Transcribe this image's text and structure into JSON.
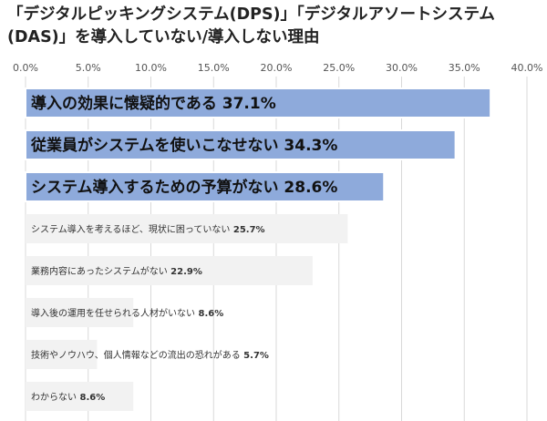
{
  "chart_data": {
    "type": "bar",
    "orientation": "horizontal",
    "title": "「デジタルピッキングシステム(DPS)」「デジタルアソートシステム(DAS)」を導入していない/導入しない理由",
    "categories": [
      "導入の効果に懐疑的である",
      "従業員がシステムを使いこなせない",
      "システム導入するための予算がない",
      "システム導入を考えるほど、現状に困っていない",
      "業務内容にあったシステムがない",
      "導入後の運用を任せられる人材がいない",
      "技術やノウハウ、個人情報などの流出の恐れがある",
      "わからない"
    ],
    "values": [
      37.1,
      34.3,
      28.6,
      25.7,
      22.9,
      8.6,
      5.7,
      8.6
    ],
    "value_labels": [
      "37.1%",
      "34.3%",
      "28.6%",
      "25.7%",
      "22.9%",
      "8.6%",
      "5.7%",
      "8.6%"
    ],
    "highlighted": [
      true,
      true,
      true,
      false,
      false,
      false,
      false,
      false
    ],
    "xlim": [
      0,
      40
    ],
    "xticks": [
      0,
      5,
      10,
      15,
      20,
      25,
      30,
      35,
      40
    ],
    "xtick_labels": [
      "0.0%",
      "5.0%",
      "10.0%",
      "15.0%",
      "20.0%",
      "25.0%",
      "30.0%",
      "35.0%",
      "40.0%"
    ],
    "xaxis_position": "top",
    "grid": true,
    "colors": {
      "highlight_bar": "#8eaadb",
      "highlight_border": "#ffffff",
      "normal_bar": "#f2f2f2",
      "grid": "#d9d9d9"
    }
  }
}
